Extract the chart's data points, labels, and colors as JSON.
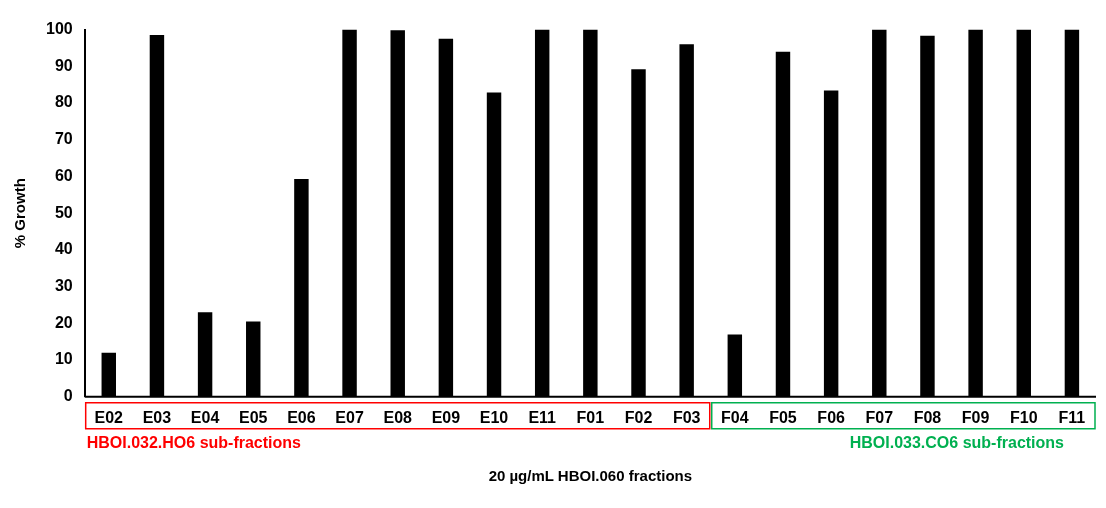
{
  "chart_data": {
    "type": "bar",
    "xlabel": "20 µg/mL HBOI.060 fractions",
    "ylabel": "% Growth",
    "categories": [
      "E02",
      "E03",
      "E04",
      "E05",
      "E06",
      "E07",
      "E08",
      "E09",
      "E10",
      "E11",
      "F01",
      "F02",
      "F03",
      "F04",
      "F05",
      "F06",
      "F07",
      "F08",
      "F09",
      "F10",
      "F11"
    ],
    "values": [
      12,
      98.5,
      23,
      20.5,
      59.3,
      100,
      99.8,
      97.5,
      82.9,
      100,
      100,
      89.2,
      96,
      17,
      94,
      83.4,
      100,
      98.3,
      100,
      100,
      100
    ],
    "color": "#000000",
    "ylim": [
      0,
      100
    ],
    "yticks": [
      0,
      10,
      20,
      30,
      40,
      50,
      60,
      70,
      80,
      90,
      100
    ],
    "grid": false,
    "legend": false,
    "annotations": [
      "HBOI.032.HO6 sub-fractions",
      "HBOI.033.CO6 sub-fractions"
    ]
  }
}
